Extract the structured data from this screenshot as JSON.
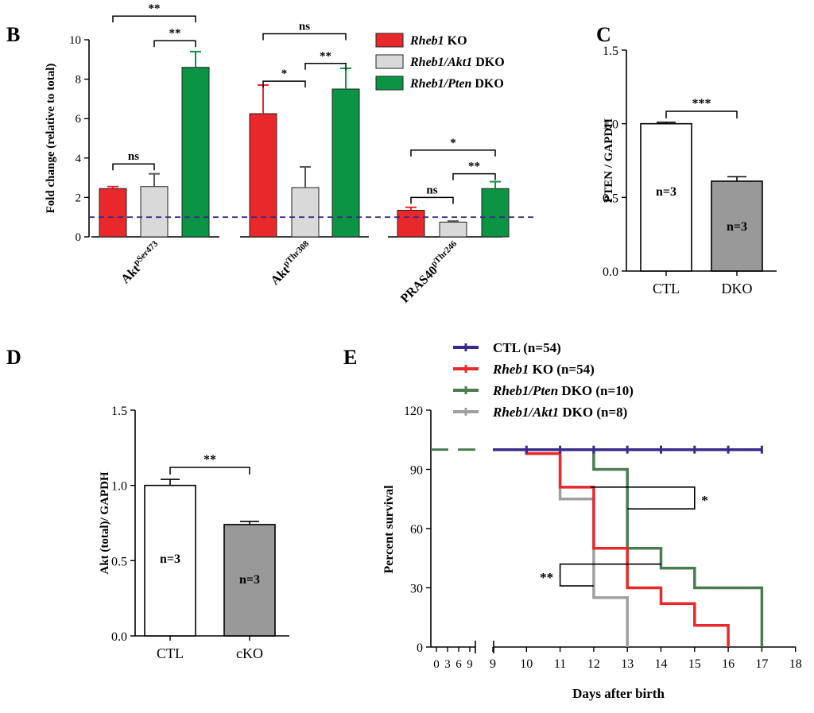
{
  "colors": {
    "red": "#e8282b",
    "light_gray": "#d9d9d9",
    "green": "#0b9444",
    "gray_bar": "#999999",
    "white": "#ffffff",
    "dashed": "#3a2b8a",
    "ctl_line": "#3a2b8a",
    "rheb_line": "#e8282b",
    "pten_line": "#4a7c52",
    "akt_line": "#a0a0a0"
  },
  "chart_data": [
    {
      "id": "B",
      "panel_label": "B",
      "type": "bar",
      "ylabel": "Fold change (relative to total)",
      "ylim": [
        0,
        10
      ],
      "yticks": [
        "0",
        "2",
        "4",
        "6",
        "8",
        "10"
      ],
      "reference_line": 1,
      "legend": [
        "Rheb1 KO",
        "Rheb1/Akt1 DKO",
        "Rheb1/Pten DKO"
      ],
      "legend_italic": [
        "Rheb1",
        "Rheb1/Akt1",
        "Rheb1/Pten"
      ],
      "legend_rest": [
        " KO",
        " DKO",
        " DKO"
      ],
      "groups": [
        {
          "label_base": "Akt",
          "label_sup": "pSer473",
          "values": [
            2.45,
            2.55,
            8.6
          ],
          "errors": [
            0.1,
            0.65,
            0.8
          ],
          "brackets": [
            {
              "from": 0,
              "to": 1,
              "text": "ns"
            },
            {
              "from": 1,
              "to": 2,
              "text": "**"
            },
            {
              "from": 0,
              "to": 2,
              "text": "**"
            }
          ]
        },
        {
          "label_base": "Akt",
          "label_sup": "pThr308",
          "values": [
            6.25,
            2.5,
            7.5
          ],
          "errors": [
            1.45,
            1.05,
            1.05
          ],
          "brackets": [
            {
              "from": 0,
              "to": 1,
              "text": "*"
            },
            {
              "from": 1,
              "to": 2,
              "text": "**"
            },
            {
              "from": 0,
              "to": 2,
              "text": "ns"
            }
          ]
        },
        {
          "label_base": "PRAS40",
          "label_sup": "pThr246",
          "values": [
            1.35,
            0.75,
            2.45
          ],
          "errors": [
            0.15,
            0.05,
            0.35
          ],
          "brackets": [
            {
              "from": 0,
              "to": 1,
              "text": "ns"
            },
            {
              "from": 1,
              "to": 2,
              "text": "**"
            },
            {
              "from": 0,
              "to": 2,
              "text": "*"
            }
          ]
        }
      ]
    },
    {
      "id": "C",
      "panel_label": "C",
      "type": "bar",
      "ylabel": "PTEN / GAPDH",
      "ylim": [
        0,
        1.5
      ],
      "yticks": [
        "0.0",
        "0.5",
        "1.0",
        "1.5"
      ],
      "categories": [
        "CTL",
        "DKO"
      ],
      "values": [
        1.0,
        0.61
      ],
      "errors": [
        0.01,
        0.03
      ],
      "n_labels": [
        "n=3",
        "n=3"
      ],
      "significance": "***"
    },
    {
      "id": "D",
      "panel_label": "D",
      "type": "bar",
      "ylabel": "Akt (total)/ GAPDH",
      "ylim": [
        0,
        1.5
      ],
      "yticks": [
        "0.0",
        "0.5",
        "1.0",
        "1.5"
      ],
      "categories": [
        "CTL",
        "cKO"
      ],
      "values": [
        1.0,
        0.74
      ],
      "errors": [
        0.04,
        0.02
      ],
      "n_labels": [
        "n=3",
        "n=3"
      ],
      "significance": "**"
    },
    {
      "id": "E",
      "panel_label": "E",
      "type": "line",
      "subtype": "kaplan-meier",
      "ylabel": "Percent survival",
      "xlabel": "Days after birth",
      "ylim": [
        0,
        120
      ],
      "yticks": [
        "0",
        "30",
        "60",
        "90",
        "120"
      ],
      "xticks": [
        "0",
        "3",
        "6",
        "9",
        "9",
        "10",
        "11",
        "12",
        "13",
        "14",
        "15",
        "16",
        "17",
        "18"
      ],
      "xlim": [
        9,
        18
      ],
      "series": [
        {
          "name": "CTL (n=54)",
          "italic": "",
          "rest": "CTL (n=54)",
          "points": [
            [
              9,
              100
            ],
            [
              17,
              100
            ]
          ],
          "censor_ticks": [
            10,
            11,
            12,
            13,
            14,
            15,
            16,
            17
          ]
        },
        {
          "name": "Rheb1 KO (n=54)",
          "italic": "Rheb1",
          "rest": " KO (n=54)",
          "points": [
            [
              9,
              100
            ],
            [
              10,
              100
            ],
            [
              10,
              98
            ],
            [
              11,
              98
            ],
            [
              11,
              81
            ],
            [
              12,
              81
            ],
            [
              12,
              50
            ],
            [
              13,
              50
            ],
            [
              13,
              30
            ],
            [
              14,
              30
            ],
            [
              14,
              22
            ],
            [
              15,
              22
            ],
            [
              15,
              11
            ],
            [
              16,
              11
            ],
            [
              16,
              0
            ]
          ],
          "censor_ticks": []
        },
        {
          "name": "Rheb1/Pten DKO (n=10)",
          "italic": "Rheb1/Pten",
          "rest": " DKO (n=10)",
          "points": [
            [
              9,
              100
            ],
            [
              12,
              100
            ],
            [
              12,
              90
            ],
            [
              13,
              90
            ],
            [
              13,
              50
            ],
            [
              14,
              50
            ],
            [
              14,
              40
            ],
            [
              15,
              40
            ],
            [
              15,
              30
            ],
            [
              17,
              30
            ],
            [
              17,
              0
            ]
          ],
          "censor_ticks": []
        },
        {
          "name": "Rheb1/Akt1 DKO (n=8)",
          "italic": "Rheb1/Akt1",
          "rest": " DKO (n=8)",
          "points": [
            [
              9,
              100
            ],
            [
              11,
              100
            ],
            [
              11,
              75
            ],
            [
              12,
              75
            ],
            [
              12,
              25
            ],
            [
              13,
              25
            ],
            [
              13,
              0
            ]
          ],
          "censor_ticks": []
        }
      ],
      "significance": [
        "*",
        "**"
      ]
    }
  ]
}
